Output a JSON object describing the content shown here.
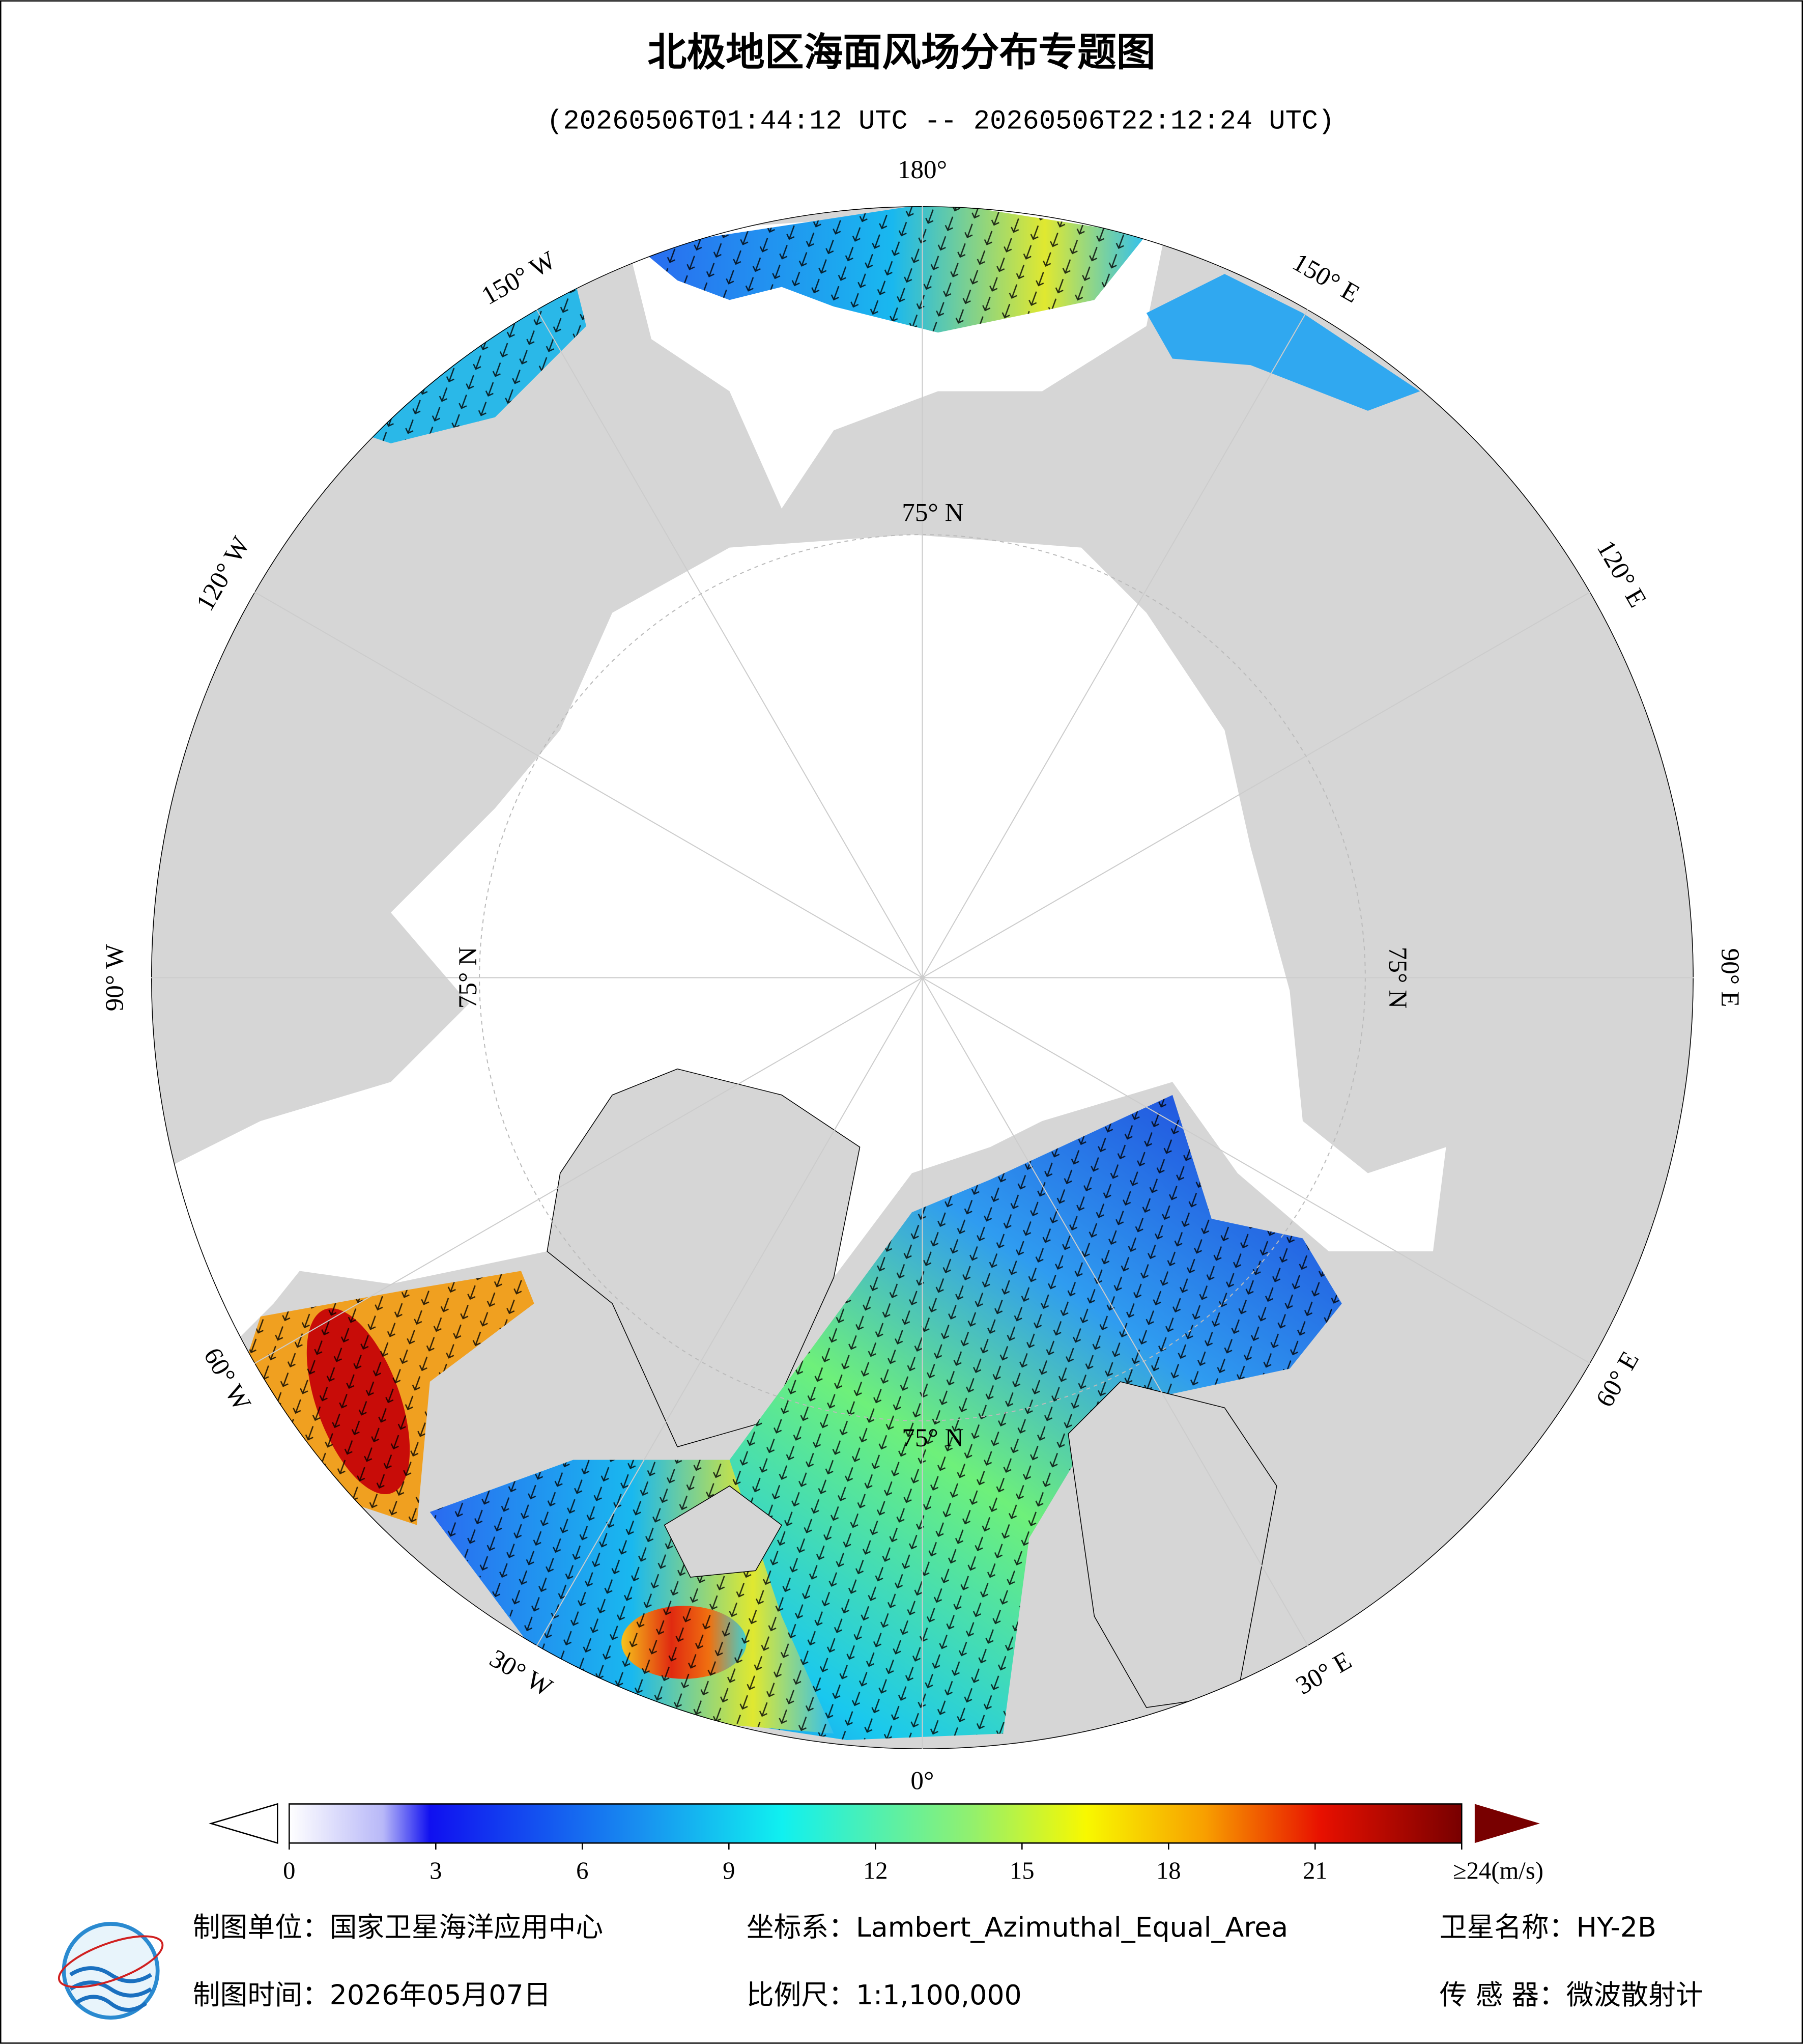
{
  "header": {
    "title": "北极地区海面风场分布专题图",
    "subtitle": "(20260506T01:44:12 UTC -- 20260506T22:12:24 UTC)"
  },
  "map": {
    "lon_labels": [
      "180°",
      "150° E",
      "120° E",
      "90° E",
      "60° E",
      "30° E",
      "0°",
      "30° W",
      "60° W",
      "90° W",
      "120° W",
      "150° W"
    ],
    "lat_label": "75° N"
  },
  "colorbar": {
    "min": 0,
    "max": 24,
    "ticks": [
      0,
      3,
      6,
      9,
      12,
      15,
      18,
      21,
      {
        "value": 24,
        "label": "≥24(m/s)"
      }
    ]
  },
  "footer": {
    "unit": "制图单位：国家卫星海洋应用中心",
    "crs": "坐标系：Lambert_Azimuthal_Equal_Area",
    "satellite": "卫星名称：HY-2B",
    "date": "制图时间：2026年05月07日",
    "scale": "比例尺：1:1,100,000",
    "sensor": "传 感 器：微波散射计"
  }
}
